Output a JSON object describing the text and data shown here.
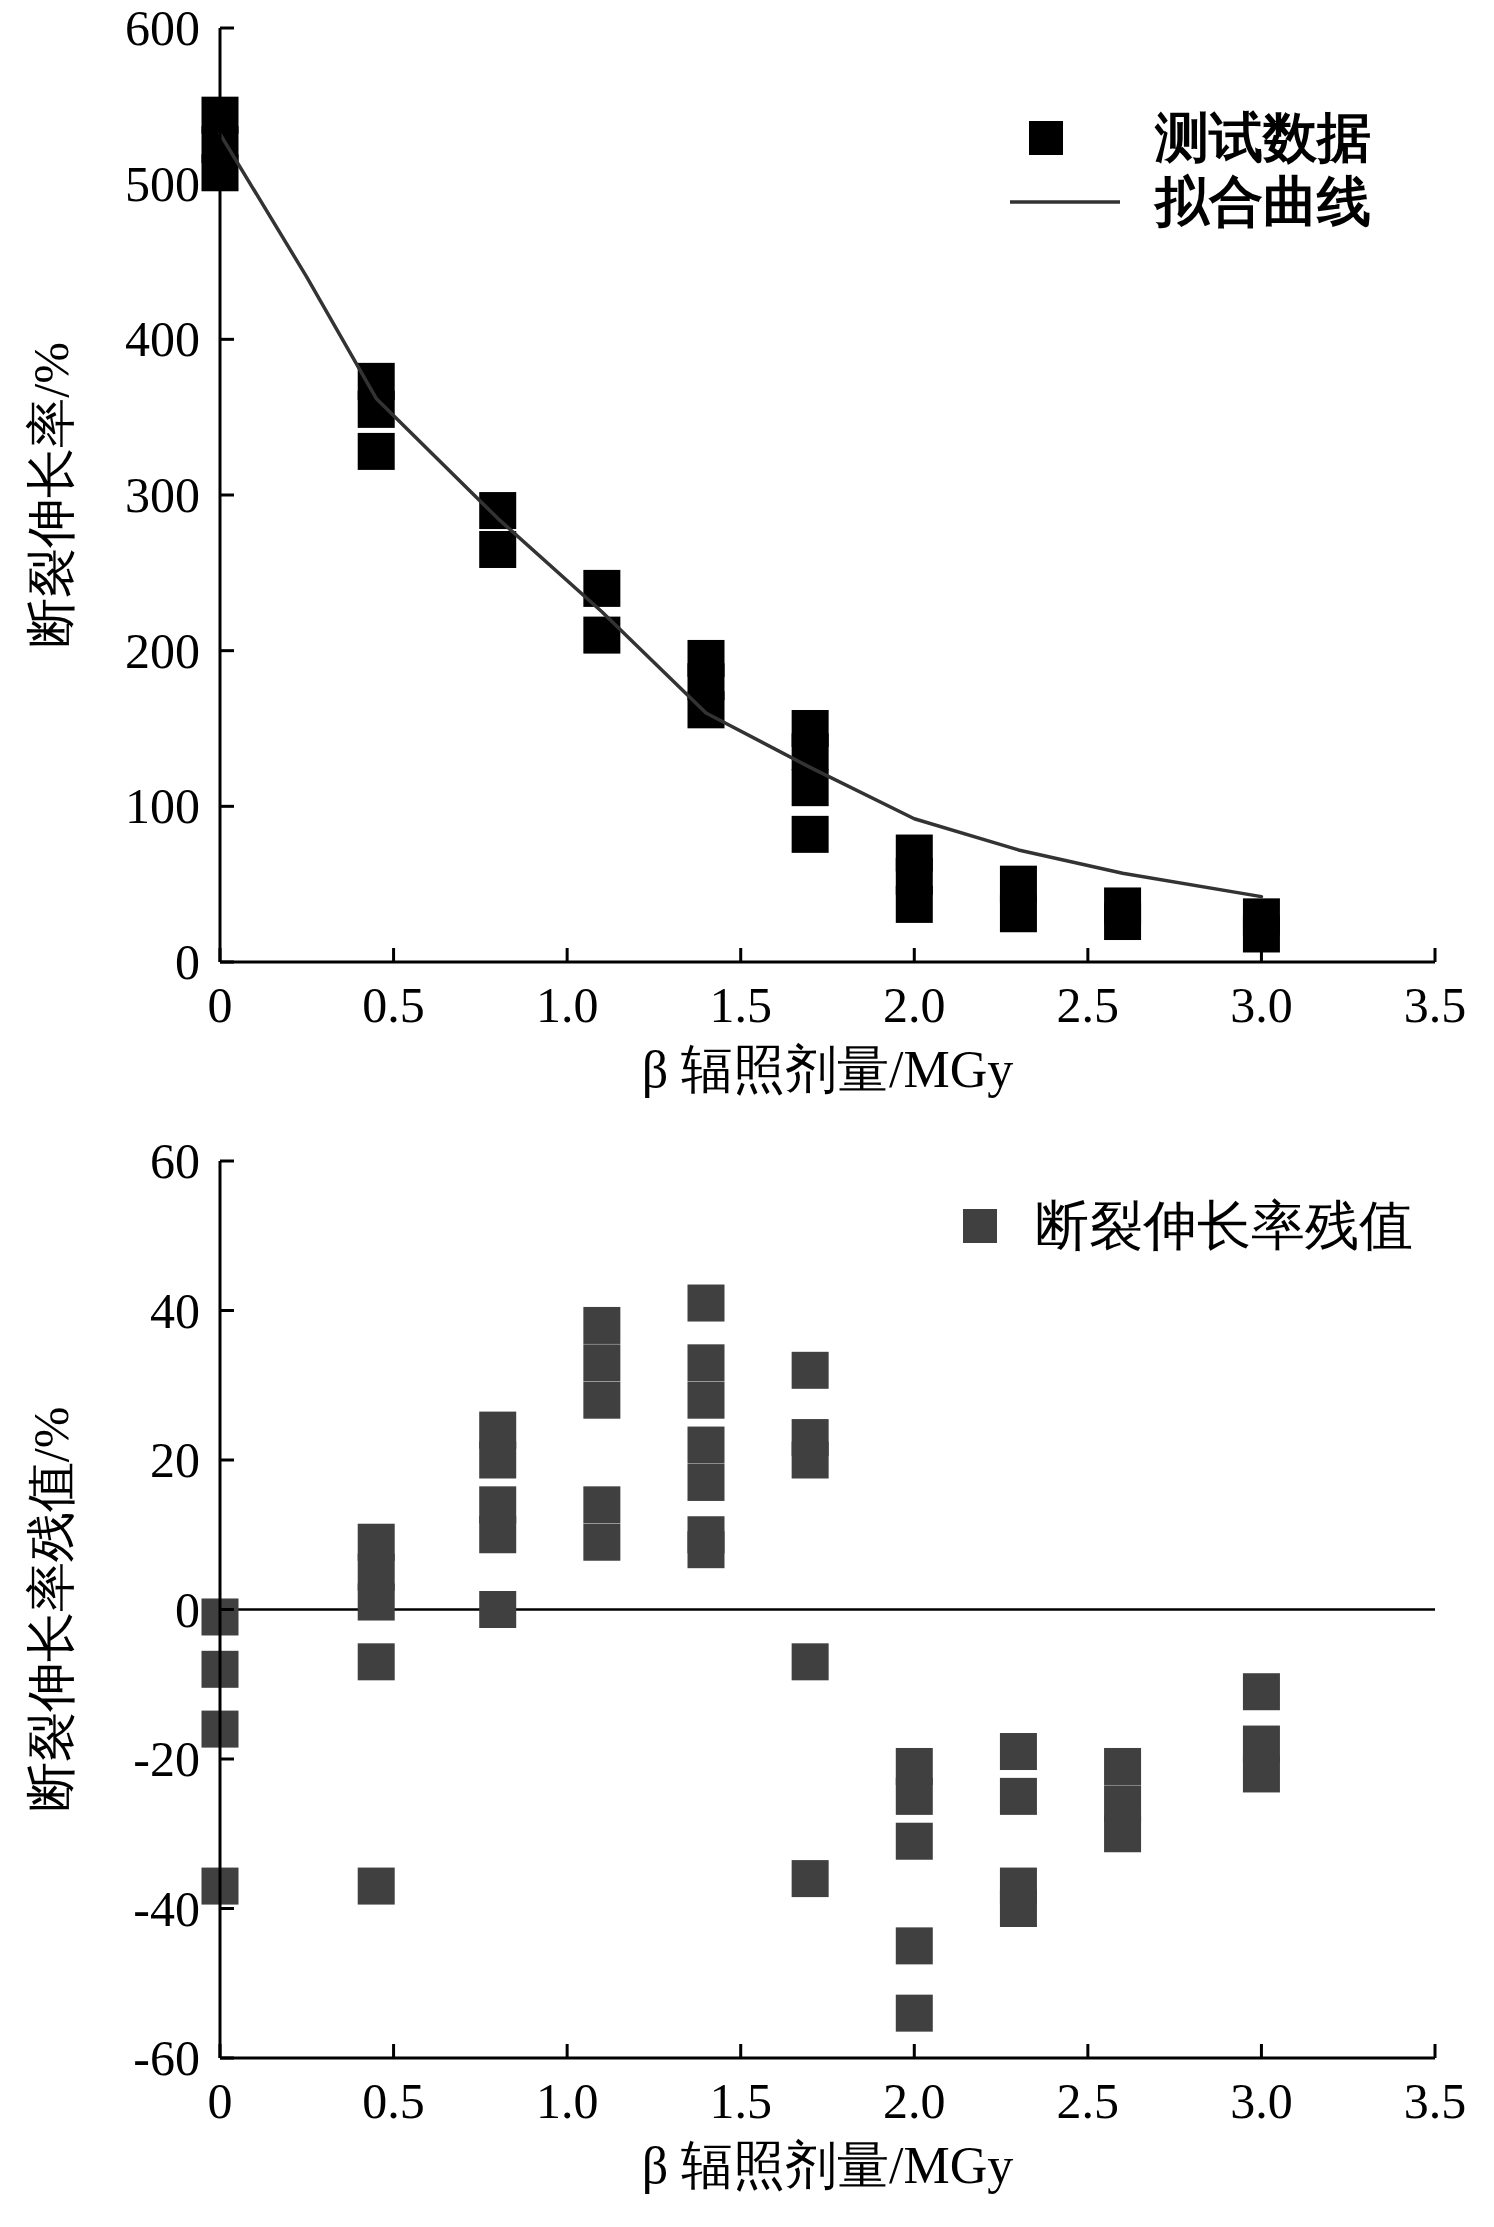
{
  "chart_data": [
    {
      "type": "scatter",
      "xlabel": "β 辐照剂量/MGy",
      "ylabel": "断裂伸长率/%",
      "xlim": [
        0,
        3.5
      ],
      "ylim": [
        0,
        600
      ],
      "xticks": [
        0,
        0.5,
        {
          "value": 1,
          "label": "1.0"
        },
        1.5,
        {
          "value": 2,
          "label": "2.0"
        },
        2.5,
        {
          "value": 3,
          "label": "3.0"
        },
        3.5
      ],
      "yticks": [
        0,
        100,
        200,
        300,
        400,
        500,
        600
      ],
      "grid": false,
      "legend": "top right",
      "series": [
        {
          "name": "测试数据",
          "marker": "square",
          "color": "#000000",
          "x": [
            0,
            0,
            0,
            0.45,
            0.45,
            0.45,
            0.8,
            0.8,
            1.1,
            1.1,
            1.4,
            1.4,
            1.4,
            1.7,
            1.7,
            1.7,
            1.7,
            2.0,
            2.0,
            2.0,
            2.3,
            2.3,
            2.6,
            2.6,
            3.0,
            3.0
          ],
          "values": [
            544,
            525,
            507,
            373,
            355,
            328,
            290,
            265,
            240,
            210,
            195,
            180,
            162,
            150,
            135,
            112,
            82,
            70,
            55,
            37,
            50,
            31,
            36,
            26,
            29,
            18
          ]
        },
        {
          "name": "拟合曲线",
          "type": "line",
          "marker": "none",
          "line_style": "solid",
          "color": "#333333",
          "x": [
            0,
            0.25,
            0.45,
            0.8,
            1.1,
            1.4,
            1.7,
            2.0,
            2.3,
            2.6,
            3.0
          ],
          "values": [
            532,
            440,
            362,
            285,
            225,
            160,
            125,
            92,
            72,
            57,
            42
          ]
        }
      ]
    },
    {
      "type": "scatter",
      "xlabel": "β 辐照剂量/MGy",
      "ylabel": "断裂伸长率残值/%",
      "xlim": [
        0,
        3.5
      ],
      "ylim": [
        -60,
        60
      ],
      "xticks": [
        0,
        0.5,
        {
          "value": 1,
          "label": "1.0"
        },
        1.5,
        {
          "value": 2,
          "label": "2.0"
        },
        2.5,
        {
          "value": 3,
          "label": "3.0"
        },
        3.5
      ],
      "yticks": [
        {
          "value": -60,
          "label": "-60"
        },
        {
          "value": -40,
          "label": "-40"
        },
        {
          "value": -20,
          "label": "-20"
        },
        0,
        20,
        40,
        60
      ],
      "grid": false,
      "legend": "top right",
      "ref_lines": [
        {
          "axis": "y",
          "value": 0,
          "color": "#000000"
        }
      ],
      "series": [
        {
          "name": "断裂伸长率残值",
          "marker": "square",
          "color": "#404040",
          "x": [
            0,
            0,
            0,
            0,
            0.45,
            0.45,
            0.45,
            0.45,
            0.45,
            0.8,
            0.8,
            0.8,
            0.8,
            0.8,
            1.1,
            1.1,
            1.1,
            1.1,
            1.1,
            1.4,
            1.4,
            1.4,
            1.4,
            1.4,
            1.4,
            1.4,
            1.7,
            1.7,
            1.7,
            1.7,
            1.7,
            2.0,
            2.0,
            2.0,
            2.0,
            2.0,
            2.3,
            2.3,
            2.3,
            2.3,
            2.6,
            2.6,
            2.6,
            3.0,
            3.0,
            3.0
          ],
          "values": [
            -1,
            -8,
            -16,
            -37,
            9,
            5,
            1,
            -7,
            -37,
            24,
            20,
            14,
            10,
            0,
            38,
            33,
            28,
            14,
            9,
            41,
            33,
            28,
            22,
            17,
            10,
            8,
            32,
            23,
            20,
            -7,
            -36,
            -21,
            -25,
            -31,
            -45,
            -54,
            -19,
            -25,
            -37,
            -40,
            -21,
            -26,
            -30,
            -11,
            -18,
            -22
          ]
        }
      ]
    }
  ]
}
